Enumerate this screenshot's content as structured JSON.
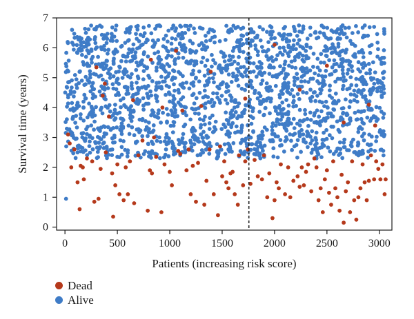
{
  "chart_data": {
    "type": "scatter",
    "title": "",
    "xlabel": "Patients (increasing risk score)",
    "ylabel": "Survival time (years)",
    "xlim": [
      -80,
      3120
    ],
    "ylim": [
      -0.1,
      7.0
    ],
    "xticks": [
      0,
      500,
      1000,
      1500,
      2000,
      2500,
      3000
    ],
    "yticks": [
      0,
      1,
      2,
      3,
      4,
      5,
      6,
      7
    ],
    "grid": false,
    "legend_position": "bottom-left, outside plot",
    "cutoff_line": {
      "x": 1755,
      "style": "dashed"
    },
    "series": [
      {
        "name": "Dead",
        "color": "#b5391b",
        "points": [
          [
            30,
            3.1
          ],
          [
            45,
            2.8
          ],
          [
            60,
            2.0
          ],
          [
            90,
            2.6
          ],
          [
            120,
            1.5
          ],
          [
            140,
            0.6
          ],
          [
            150,
            2.05
          ],
          [
            170,
            2.0
          ],
          [
            180,
            1.6
          ],
          [
            210,
            2.3
          ],
          [
            260,
            2.2
          ],
          [
            280,
            0.85
          ],
          [
            300,
            5.35
          ],
          [
            320,
            0.95
          ],
          [
            340,
            1.95
          ],
          [
            360,
            4.4
          ],
          [
            390,
            2.5
          ],
          [
            420,
            3.7
          ],
          [
            450,
            1.8
          ],
          [
            460,
            0.35
          ],
          [
            480,
            1.4
          ],
          [
            500,
            2.1
          ],
          [
            520,
            1.1
          ],
          [
            560,
            0.9
          ],
          [
            580,
            2.0
          ],
          [
            600,
            1.1
          ],
          [
            620,
            2.2
          ],
          [
            650,
            4.25
          ],
          [
            660,
            0.8
          ],
          [
            700,
            2.4
          ],
          [
            740,
            2.9
          ],
          [
            790,
            0.55
          ],
          [
            810,
            1.9
          ],
          [
            830,
            1.8
          ],
          [
            850,
            3.0
          ],
          [
            870,
            2.35
          ],
          [
            920,
            0.5
          ],
          [
            930,
            4.0
          ],
          [
            950,
            2.1
          ],
          [
            1000,
            1.85
          ],
          [
            1020,
            1.4
          ],
          [
            1060,
            5.9
          ],
          [
            1080,
            2.55
          ],
          [
            1100,
            2.45
          ],
          [
            1120,
            3.9
          ],
          [
            1160,
            1.9
          ],
          [
            1180,
            2.6
          ],
          [
            1200,
            1.1
          ],
          [
            1220,
            2.05
          ],
          [
            1250,
            0.85
          ],
          [
            1270,
            2.15
          ],
          [
            1300,
            4.05
          ],
          [
            1330,
            0.75
          ],
          [
            1350,
            1.55
          ],
          [
            1380,
            2.6
          ],
          [
            1420,
            1.1
          ],
          [
            1460,
            0.4
          ],
          [
            1480,
            2.7
          ],
          [
            1500,
            1.7
          ],
          [
            1520,
            2.2
          ],
          [
            1540,
            1.5
          ],
          [
            1560,
            1.3
          ],
          [
            1580,
            1.8
          ],
          [
            1600,
            1.85
          ],
          [
            1620,
            1.1
          ],
          [
            1650,
            0.75
          ],
          [
            1660,
            2.4
          ],
          [
            1700,
            1.4
          ],
          [
            1720,
            2.2
          ],
          [
            1745,
            2.6
          ],
          [
            1770,
            1.45
          ],
          [
            1810,
            2.25
          ],
          [
            1840,
            1.7
          ],
          [
            1880,
            1.6
          ],
          [
            1900,
            2.4
          ],
          [
            1930,
            1.0
          ],
          [
            1950,
            1.8
          ],
          [
            1980,
            0.3
          ],
          [
            2000,
            0.9
          ],
          [
            2020,
            1.5
          ],
          [
            2040,
            1.3
          ],
          [
            2060,
            2.1
          ],
          [
            2100,
            1.1
          ],
          [
            2130,
            2.0
          ],
          [
            2150,
            1.0
          ],
          [
            2180,
            1.55
          ],
          [
            2220,
            1.7
          ],
          [
            2240,
            1.35
          ],
          [
            2260,
            2.0
          ],
          [
            2280,
            1.4
          ],
          [
            2300,
            1.85
          ],
          [
            2320,
            2.1
          ],
          [
            2350,
            1.2
          ],
          [
            2380,
            2.3
          ],
          [
            2400,
            2.0
          ],
          [
            2420,
            0.9
          ],
          [
            2440,
            1.3
          ],
          [
            2460,
            0.5
          ],
          [
            2480,
            1.6
          ],
          [
            2500,
            1.9
          ],
          [
            2520,
            1.15
          ],
          [
            2540,
            0.75
          ],
          [
            2560,
            2.2
          ],
          [
            2580,
            1.3
          ],
          [
            2600,
            1.0
          ],
          [
            2620,
            0.55
          ],
          [
            2640,
            1.75
          ],
          [
            2660,
            0.15
          ],
          [
            2680,
            1.2
          ],
          [
            2700,
            1.5
          ],
          [
            2720,
            0.5
          ],
          [
            2740,
            2.2
          ],
          [
            2760,
            0.9
          ],
          [
            2780,
            0.25
          ],
          [
            2800,
            1.0
          ],
          [
            2820,
            1.3
          ],
          [
            2840,
            2.1
          ],
          [
            2860,
            1.5
          ],
          [
            2880,
            0.9
          ],
          [
            2900,
            1.55
          ],
          [
            2920,
            2.4
          ],
          [
            2950,
            1.6
          ],
          [
            2970,
            2.2
          ],
          [
            2990,
            1.95
          ],
          [
            3010,
            1.6
          ],
          [
            3030,
            2.1
          ],
          [
            3050,
            1.1
          ],
          [
            3060,
            1.6
          ],
          [
            1720,
            4.3
          ],
          [
            2000,
            6.1
          ],
          [
            2240,
            4.6
          ],
          [
            2660,
            3.5
          ],
          [
            2900,
            4.1
          ],
          [
            380,
            4.8
          ],
          [
            820,
            5.6
          ],
          [
            1390,
            5.2
          ],
          [
            2500,
            5.4
          ],
          [
            2960,
            3.4
          ]
        ]
      },
      {
        "name": "Alive",
        "color": "#3f7cc7",
        "points": [
          [
            10,
            0.95
          ],
          [
            80,
            6.1
          ],
          [
            200,
            6.5
          ],
          [
            350,
            6.7
          ],
          [
            600,
            6.6
          ],
          [
            900,
            6.75
          ],
          [
            1300,
            6.65
          ],
          [
            1650,
            6.7
          ],
          [
            1700,
            6.4
          ],
          [
            2100,
            6.7
          ],
          [
            2650,
            6.75
          ],
          [
            2950,
            6.7
          ],
          [
            120,
            2.5
          ],
          [
            500,
            2.35
          ],
          [
            1100,
            2.4
          ],
          [
            1450,
            2.3
          ],
          [
            1900,
            2.35
          ],
          [
            2400,
            2.3
          ],
          [
            2800,
            2.4
          ],
          [
            3040,
            2.4
          ]
        ],
        "note_generated": true
      }
    ]
  },
  "legend": {
    "dead_label": "Dead",
    "alive_label": "Alive",
    "dead_color": "#b5391b",
    "alive_color": "#3f7cc7"
  }
}
